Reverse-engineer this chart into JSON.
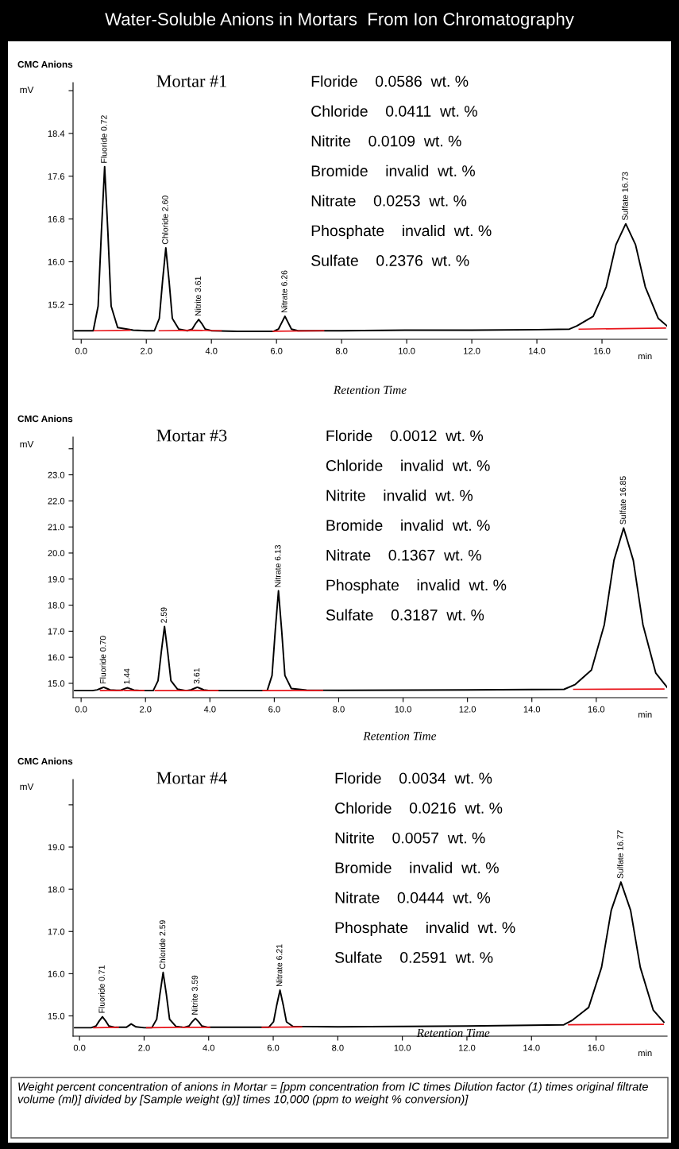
{
  "chart_data": [
    {
      "type": "line",
      "title": "CMC Anions",
      "subtitle": "Mortar #1",
      "xlabel": "Retention Time",
      "ylabel": "mV",
      "xlim": [
        -0.25,
        18.0
      ],
      "ylim": [
        14.55,
        19.35
      ],
      "xticks": [
        {
          "value": 0,
          "label": "0.0"
        },
        {
          "value": 2,
          "label": "2.0"
        },
        {
          "value": 4,
          "label": "4.0"
        },
        {
          "value": 6,
          "label": "6.0"
        },
        {
          "value": 8,
          "label": "8.0"
        },
        {
          "value": 10,
          "label": "10.0"
        },
        {
          "value": 12,
          "label": "12.0"
        },
        {
          "value": 14,
          "label": "14.0"
        },
        {
          "value": 16,
          "label": "16.0"
        }
      ],
      "yticks": [
        15.2,
        {
          "value": 16,
          "label": "16.0"
        },
        16.8,
        17.6,
        18.4,
        {
          "value": 19.2,
          "label": null
        }
      ],
      "series": [
        {
          "color": "#000000",
          "x": [
            -0.2,
            0.37,
            0.52,
            0.62,
            0.72,
            0.82,
            0.92,
            1.12,
            1.6,
            2.0,
            2.25,
            2.4,
            2.5,
            2.6,
            2.7,
            2.8,
            3.0,
            3.26,
            3.41,
            3.51,
            3.61,
            3.71,
            3.81,
            4.01,
            4.8,
            5.6,
            5.91,
            6.06,
            6.16,
            6.26,
            6.36,
            6.46,
            6.66,
            8.0,
            10.0,
            12.0,
            14.0,
            15.0,
            15.23,
            15.73,
            16.13,
            16.43,
            16.73,
            17.03,
            17.33,
            17.73,
            18.0
          ],
          "values": [
            14.71,
            14.71,
            15.17,
            16.55,
            17.78,
            16.55,
            15.17,
            14.77,
            14.72,
            14.71,
            14.71,
            14.94,
            15.64,
            16.26,
            15.64,
            14.94,
            14.74,
            14.71,
            14.74,
            14.84,
            14.92,
            14.84,
            14.74,
            14.71,
            14.7,
            14.7,
            14.7,
            14.74,
            14.86,
            14.98,
            14.86,
            14.74,
            14.71,
            14.71,
            14.72,
            14.72,
            14.73,
            14.74,
            14.8,
            14.98,
            15.53,
            16.32,
            16.71,
            16.32,
            15.53,
            14.94,
            14.8
          ]
        },
        {
          "color": "#e8141a",
          "x": [
            0.4,
            1.5,
            1.9,
            2.4,
            3.4,
            3.4,
            4.3,
            5.0,
            5.9,
            7.45,
            11.0,
            15.3,
            17.95
          ],
          "values": [
            14.71,
            14.72,
            null,
            14.71,
            14.72,
            14.72,
            14.71,
            null,
            14.7,
            14.71,
            null,
            14.74,
            14.76
          ]
        }
      ],
      "annotations": [
        "Water-Soluble Anions in Mortars  From Ion Chromatography",
        "Floride    0.0586  wt. %",
        "Chloride    0.0411  wt. %",
        "Nitrite    0.0109  wt. %",
        "Bromide    invalid  wt. %",
        "Nitrate    0.0253  wt. %",
        "Phosphate    invalid  wt. %",
        "Sulfate    0.2376  wt. %",
        "min",
        {
          "text": "Fluoride 0.72",
          "x": 0.72,
          "y": 17.78
        },
        {
          "text": "Chloride 2.60",
          "x": 2.6,
          "y": 16.26
        },
        {
          "text": "Nitrite 3.61",
          "x": 3.61,
          "y": 14.92
        },
        {
          "text": "Nitrate 6.26",
          "x": 6.26,
          "y": 14.98
        },
        {
          "text": "Sulfate 16.73",
          "x": 16.73,
          "y": 16.71
        }
      ]
    },
    {
      "type": "line",
      "title": "CMC Anions",
      "subtitle": "Mortar #3",
      "xlabel": "Retention Time",
      "ylabel": "mV",
      "xlim": [
        -0.25,
        18.2
      ],
      "ylim": [
        14.45,
        24.45
      ],
      "xticks": [
        {
          "value": 0,
          "label": "0.0"
        },
        {
          "value": 2,
          "label": "2.0"
        },
        {
          "value": 4,
          "label": "4.0"
        },
        {
          "value": 6,
          "label": "6.0"
        },
        {
          "value": 8,
          "label": "8.0"
        },
        {
          "value": 10,
          "label": "10.0"
        },
        {
          "value": 12,
          "label": "12.0"
        },
        {
          "value": 14,
          "label": "14.0"
        },
        {
          "value": 16,
          "label": "16.0"
        }
      ],
      "yticks": [
        {
          "value": 15,
          "label": "15.0"
        },
        {
          "value": 16,
          "label": "16.0"
        },
        {
          "value": 17,
          "label": "17.0"
        },
        {
          "value": 18,
          "label": "18.0"
        },
        {
          "value": 19,
          "label": "19.0"
        },
        {
          "value": 20,
          "label": "20.0"
        },
        {
          "value": 21,
          "label": "21.0"
        },
        {
          "value": 22,
          "label": "22.0"
        },
        {
          "value": 23,
          "label": "23.0"
        },
        {
          "value": 24,
          "label": null
        }
      ],
      "series": [
        {
          "color": "#000000",
          "x": [
            -0.2,
            0.35,
            0.5,
            0.6,
            0.7,
            0.8,
            0.9,
            1.1,
            1.24,
            1.34,
            1.44,
            1.54,
            1.64,
            1.9,
            2.24,
            2.39,
            2.49,
            2.59,
            2.69,
            2.79,
            2.99,
            3.26,
            3.41,
            3.51,
            3.61,
            3.71,
            3.81,
            4.01,
            5.0,
            5.78,
            5.93,
            6.03,
            6.13,
            6.23,
            6.33,
            6.53,
            7.0,
            8.0,
            10.0,
            12.0,
            14.0,
            15.0,
            15.35,
            15.85,
            16.25,
            16.55,
            16.85,
            17.15,
            17.45,
            17.85,
            18.2
          ],
          "values": [
            14.72,
            14.72,
            14.75,
            14.8,
            14.85,
            14.8,
            14.75,
            14.73,
            14.74,
            14.79,
            14.83,
            14.79,
            14.74,
            14.72,
            14.72,
            15.1,
            16.2,
            17.18,
            16.2,
            15.1,
            14.78,
            14.72,
            14.75,
            14.8,
            14.85,
            14.8,
            14.75,
            14.72,
            14.72,
            14.72,
            15.3,
            17.02,
            18.55,
            17.02,
            15.3,
            14.8,
            14.74,
            14.73,
            14.74,
            14.75,
            14.76,
            14.77,
            14.96,
            15.51,
            17.25,
            19.72,
            20.96,
            19.72,
            17.25,
            15.39,
            14.85
          ]
        },
        {
          "color": "#e8141a",
          "x": [
            0.6,
            1.3,
            1.32,
            1.35,
            1.95,
            2.1,
            2.3,
            3.35,
            3.37,
            3.4,
            4.25,
            5.0,
            5.65,
            7.5,
            11.0,
            15.3,
            18.1
          ],
          "values": [
            14.72,
            14.73,
            null,
            14.73,
            14.72,
            null,
            14.72,
            14.72,
            null,
            14.72,
            14.72,
            null,
            14.72,
            14.73,
            null,
            14.77,
            14.78
          ]
        }
      ],
      "annotations": [
        "Floride    0.0012  wt. %",
        "Chloride    invalid  wt. %",
        "Nitrite    invalid  wt. %",
        "Bromide    invalid  wt. %",
        "Nitrate    0.1367  wt. %",
        "Phosphate    invalid  wt. %",
        "Sulfate    0.3187  wt. %",
        "min",
        {
          "text": "Fluoride 0.70",
          "x": 0.7,
          "y": 14.85
        },
        {
          "text": "1.44",
          "x": 1.44,
          "y": 14.83
        },
        {
          "text": "2.59",
          "x": 2.59,
          "y": 17.18
        },
        {
          "text": "3.61",
          "x": 3.61,
          "y": 14.85
        },
        {
          "text": "Nitrate 6.13",
          "x": 6.13,
          "y": 18.55
        },
        {
          "text": "Sulfate 16.85",
          "x": 16.85,
          "y": 20.96
        }
      ]
    },
    {
      "type": "line",
      "title": "CMC Anions",
      "subtitle": "Mortar #4",
      "xlabel": "Retention Time",
      "ylabel": "mV",
      "xlim": [
        -0.2,
        18.2
      ],
      "ylim": [
        14.52,
        20.6
      ],
      "xticks": [
        {
          "value": 0,
          "label": "0.0"
        },
        {
          "value": 2,
          "label": "2.0"
        },
        {
          "value": 4,
          "label": "4.0"
        },
        {
          "value": 6,
          "label": "6.0"
        },
        {
          "value": 8,
          "label": "8.0"
        },
        {
          "value": 10,
          "label": "10.0"
        },
        {
          "value": 12,
          "label": "12.0"
        },
        {
          "value": 14,
          "label": "14.0"
        },
        {
          "value": 16,
          "label": "16.0"
        }
      ],
      "yticks": [
        {
          "value": 15,
          "label": "15.0"
        },
        {
          "value": 16,
          "label": "16.0"
        },
        {
          "value": 17,
          "label": "17.0"
        },
        {
          "value": 18,
          "label": "18.0"
        },
        {
          "value": 19,
          "label": "19.0"
        },
        {
          "value": 20,
          "label": null
        }
      ],
      "series": [
        {
          "color": "#000000",
          "x": [
            -0.15,
            0.36,
            0.51,
            0.61,
            0.71,
            0.81,
            0.91,
            1.11,
            1.45,
            1.6,
            1.75,
            2.0,
            2.24,
            2.39,
            2.49,
            2.59,
            2.69,
            2.79,
            2.99,
            3.24,
            3.39,
            3.49,
            3.59,
            3.69,
            3.79,
            3.99,
            5.0,
            5.86,
            6.01,
            6.11,
            6.21,
            6.31,
            6.41,
            6.61,
            8.0,
            10.0,
            12.0,
            14.0,
            15.0,
            15.27,
            15.77,
            16.17,
            16.47,
            16.77,
            17.07,
            17.37,
            17.77,
            18.1
          ],
          "values": [
            14.72,
            14.72,
            14.76,
            14.88,
            14.98,
            14.88,
            14.76,
            14.73,
            14.73,
            14.81,
            14.74,
            14.72,
            14.72,
            14.92,
            15.51,
            16.03,
            15.51,
            14.92,
            14.75,
            14.73,
            14.76,
            14.86,
            14.94,
            14.86,
            14.76,
            14.73,
            14.73,
            14.73,
            14.86,
            15.26,
            15.61,
            15.26,
            14.86,
            14.75,
            14.74,
            14.75,
            14.76,
            14.78,
            14.79,
            14.9,
            15.2,
            16.15,
            17.5,
            18.17,
            17.5,
            16.15,
            15.14,
            14.85
          ]
        },
        {
          "color": "#e8141a",
          "x": [
            0.44,
            1.2,
            1.6,
            2.08,
            3.12,
            3.15,
            3.18,
            4.03,
            5.0,
            5.66,
            6.88,
            11.0,
            15.15,
            18.08
          ],
          "values": [
            14.72,
            14.73,
            null,
            14.72,
            14.73,
            null,
            14.73,
            14.73,
            null,
            14.73,
            14.74,
            null,
            14.79,
            14.8
          ]
        }
      ],
      "annotations": [
        "Floride    0.0034  wt. %",
        "Chloride    0.0216  wt. %",
        "Nitrite    0.0057  wt. %",
        "Bromide    invalid  wt. %",
        "Nitrate    0.0444  wt. %",
        "Phosphate    invalid  wt. %",
        "Sulfate    0.2591  wt. %",
        "min",
        {
          "text": "Fluoride 0.71",
          "x": 0.71,
          "y": 14.98
        },
        {
          "text": "Chloride 2.59",
          "x": 2.59,
          "y": 16.03
        },
        {
          "text": "Nitrite 3.59",
          "x": 3.59,
          "y": 14.94
        },
        {
          "text": "Nitrate 6.21",
          "x": 6.21,
          "y": 15.61
        },
        {
          "text": "Sulfate 16.77",
          "x": 16.77,
          "y": 18.17
        },
        "Weight percent concentration of anions in Mortar = [ppm concentration from IC times Dilution factor (1) times original filtrate volume (ml)] divided by [Sample weight (g)] times 10,000 (ppm to weight % conversion)]"
      ]
    }
  ]
}
